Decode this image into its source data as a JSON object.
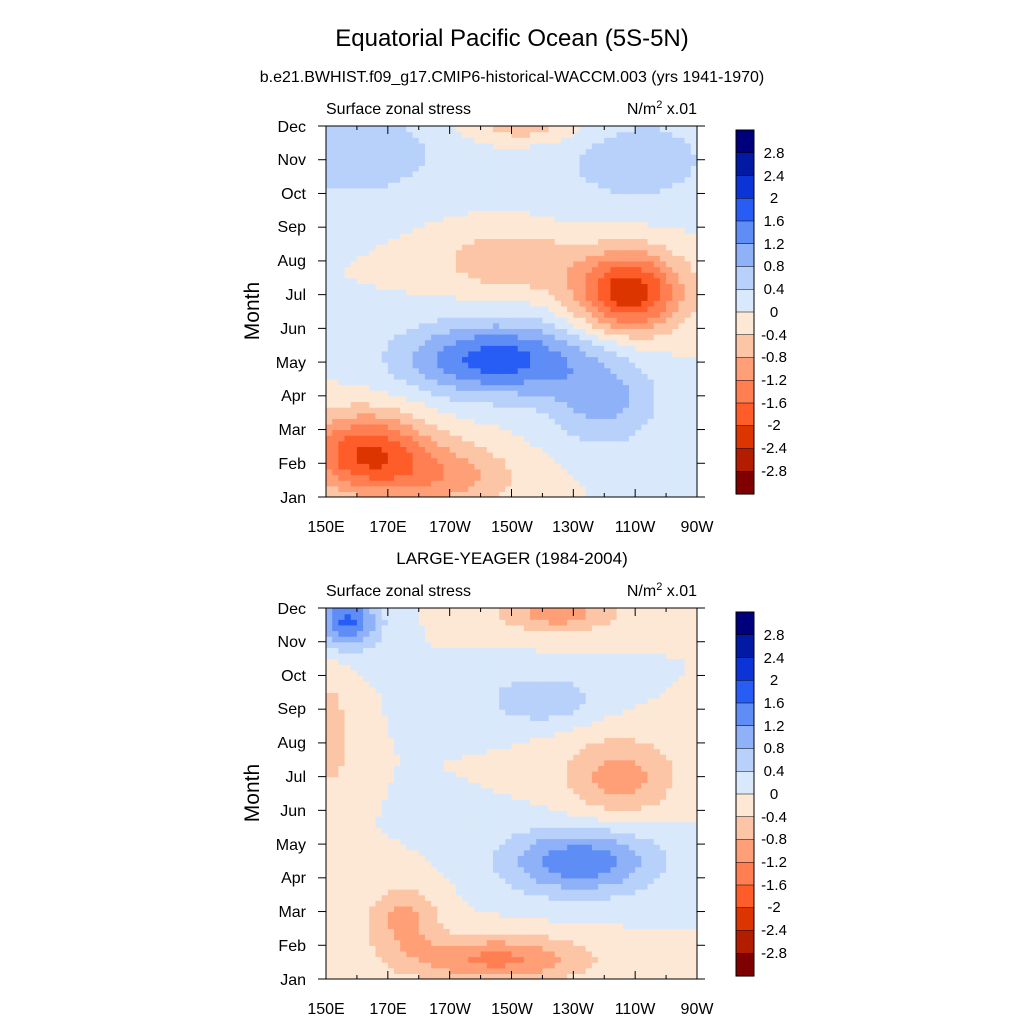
{
  "figure": {
    "title": "Equatorial Pacific Ocean (5S-5N)",
    "subtitle": "b.e21.BWHIST.f09_g17.CMIP6-historical-WACCM.003 (yrs 1941-1970)"
  },
  "chart_data": [
    {
      "type": "heatmap",
      "panel_title": "",
      "left_label": "Surface zonal stress",
      "units_base": "N/m",
      "units_sup": "2",
      "units_tail": " x.01",
      "xlabel": "",
      "ylabel": "Month",
      "x_ticks": [
        "150E",
        "170E",
        "170W",
        "150W",
        "130W",
        "110W",
        "90W"
      ],
      "y_ticks": [
        "Jan",
        "Feb",
        "Mar",
        "Apr",
        "May",
        "Jun",
        "Jul",
        "Aug",
        "Sep",
        "Oct",
        "Nov",
        "Dec"
      ],
      "x_range_lon": [
        150,
        270
      ],
      "contour_levels": [
        -2.8,
        -2.4,
        -2,
        -1.6,
        -1.2,
        -0.8,
        -0.4,
        0,
        0.4,
        0.8,
        1.2,
        1.6,
        2,
        2.4,
        2.8
      ],
      "features": [
        {
          "kind": "neg",
          "lon": 163,
          "month": 1.3,
          "amp": 2.0,
          "slon": 20,
          "smon": 1.2
        },
        {
          "kind": "neg",
          "lon": 190,
          "month": 0.6,
          "amp": 0.9,
          "slon": 22,
          "smon": 1.0
        },
        {
          "kind": "pos",
          "lon": 205,
          "month": 4.1,
          "amp": 1.8,
          "slon": 30,
          "smon": 1.1
        },
        {
          "kind": "pos",
          "lon": 240,
          "month": 2.8,
          "amp": 0.9,
          "slon": 18,
          "smon": 1.3
        },
        {
          "kind": "neg",
          "lon": 248,
          "month": 6.1,
          "amp": 2.3,
          "slon": 17,
          "smon": 1.2
        },
        {
          "kind": "neg",
          "lon": 210,
          "month": 7.0,
          "amp": 0.8,
          "slon": 22,
          "smon": 0.9
        },
        {
          "kind": "pos",
          "lon": 160,
          "month": 10.2,
          "amp": 0.7,
          "slon": 30,
          "smon": 1.4
        },
        {
          "kind": "pos",
          "lon": 250,
          "month": 10.0,
          "amp": 0.6,
          "slon": 30,
          "smon": 1.6
        },
        {
          "kind": "neg",
          "lon": 215,
          "month": 11.0,
          "amp": 0.7,
          "slon": 20,
          "smon": 0.5
        }
      ]
    },
    {
      "type": "heatmap",
      "panel_title": "LARGE-YEAGER (1984-2004)",
      "left_label": "Surface zonal stress",
      "units_base": "N/m",
      "units_sup": "2",
      "units_tail": " x.01",
      "xlabel": "",
      "ylabel": "Month",
      "x_ticks": [
        "150E",
        "170E",
        "170W",
        "150W",
        "130W",
        "110W",
        "90W"
      ],
      "y_ticks": [
        "Jan",
        "Feb",
        "Mar",
        "Apr",
        "May",
        "Jun",
        "Jul",
        "Aug",
        "Sep",
        "Oct",
        "Nov",
        "Dec"
      ],
      "x_range_lon": [
        150,
        270
      ],
      "contour_levels": [
        -2.8,
        -2.4,
        -2,
        -1.6,
        -1.2,
        -0.8,
        -0.4,
        0,
        0.4,
        0.8,
        1.2,
        1.6,
        2,
        2.4,
        2.8
      ],
      "features": [
        {
          "kind": "pos",
          "lon": 157,
          "month": 10.6,
          "amp": 1.7,
          "slon": 10,
          "smon": 0.8
        },
        {
          "kind": "pos",
          "lon": 232,
          "month": 3.5,
          "amp": 1.5,
          "slon": 25,
          "smon": 1.0
        },
        {
          "kind": "pos",
          "lon": 220,
          "month": 8.3,
          "amp": 0.8,
          "slon": 18,
          "smon": 0.7
        },
        {
          "kind": "neg",
          "lon": 205,
          "month": 0.6,
          "amp": 1.3,
          "slon": 30,
          "smon": 0.7
        },
        {
          "kind": "neg",
          "lon": 175,
          "month": 1.8,
          "amp": 0.9,
          "slon": 12,
          "smon": 1.0
        },
        {
          "kind": "neg",
          "lon": 245,
          "month": 6.0,
          "amp": 1.0,
          "slon": 18,
          "smon": 1.2
        },
        {
          "kind": "neg",
          "lon": 225,
          "month": 10.8,
          "amp": 1.0,
          "slon": 20,
          "smon": 0.5
        },
        {
          "kind": "neg",
          "lon": 152,
          "month": 7.2,
          "amp": 0.6,
          "slon": 6,
          "smon": 2.0
        }
      ]
    }
  ],
  "colorbar": {
    "labels": [
      "2.8",
      "2.4",
      "2",
      "1.6",
      "1.2",
      "0.8",
      "0.4",
      "0",
      "-0.4",
      "-0.8",
      "-1.2",
      "-1.6",
      "-2",
      "-2.4",
      "-2.8"
    ],
    "colors": [
      "#7e0000",
      "#b21d00",
      "#dd3500",
      "#fe5c28",
      "#ff7e52",
      "#fe9f77",
      "#fbc5a6",
      "#fde8d6",
      "#d9e9fb",
      "#b7d1fb",
      "#8fb1f8",
      "#5f8df6",
      "#275df4",
      "#0a34d6",
      "#0119a3",
      "#00007c"
    ]
  }
}
